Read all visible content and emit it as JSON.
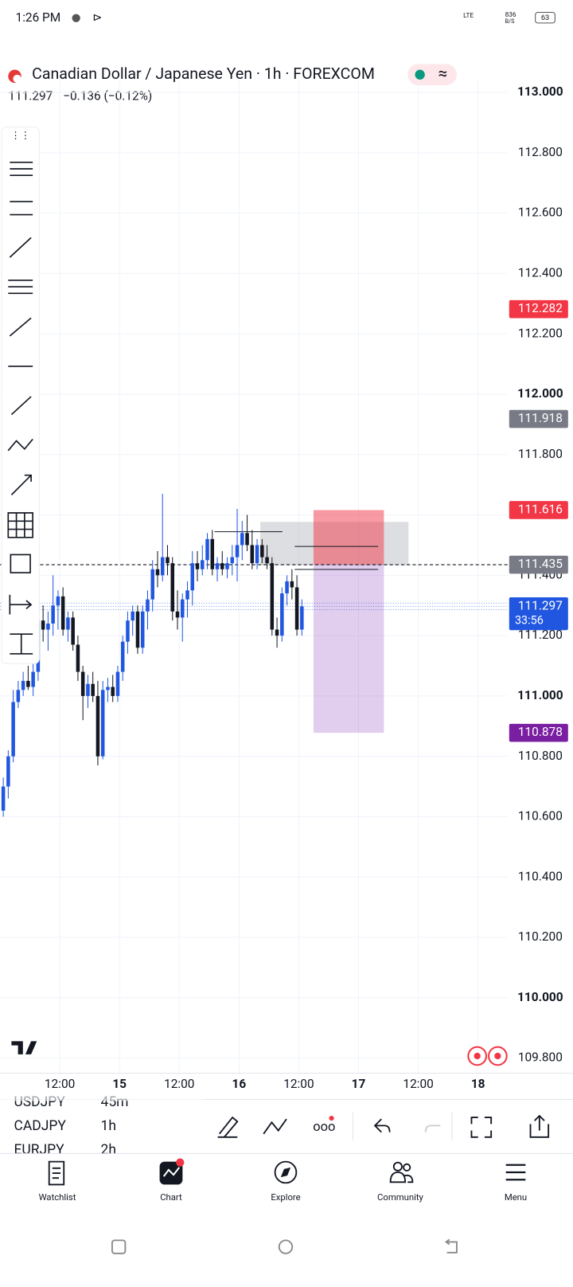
{
  "status_bar": {
    "time": "1:26 PM",
    "network": "LTE",
    "speed": "836",
    "speed_unit": "B/S",
    "battery": "63"
  },
  "header": {
    "symbol": "Canadian Dollar / Japanese Yen · 1h · FOREXCOM",
    "last": "111.297",
    "change": "−0.136 (−0.12%)"
  },
  "chart_data": {
    "type": "candlestick",
    "up_color": "#2157e0",
    "down_color": "#131722",
    "candles": [
      [
        110.62,
        110.73,
        110.6,
        110.7
      ],
      [
        110.7,
        110.82,
        110.66,
        110.8
      ],
      [
        110.8,
        111.02,
        110.78,
        110.98
      ],
      [
        110.98,
        111.05,
        110.96,
        111.02
      ],
      [
        111.02,
        111.08,
        111.0,
        111.05
      ],
      [
        111.05,
        111.1,
        111.02,
        111.03
      ],
      [
        111.03,
        111.12,
        111.0,
        111.08
      ],
      [
        111.08,
        111.3,
        111.05,
        111.25
      ],
      [
        111.25,
        111.3,
        111.18,
        111.22
      ],
      [
        111.22,
        111.28,
        111.15,
        111.24
      ],
      [
        111.24,
        111.4,
        111.2,
        111.3
      ],
      [
        111.3,
        111.35,
        111.22,
        111.33
      ],
      [
        111.33,
        111.36,
        111.2,
        111.22
      ],
      [
        111.22,
        111.28,
        111.18,
        111.26
      ],
      [
        111.26,
        111.28,
        111.15,
        111.17
      ],
      [
        111.17,
        111.2,
        111.05,
        111.08
      ],
      [
        111.08,
        111.1,
        110.92,
        111.0
      ],
      [
        111.0,
        111.07,
        110.96,
        111.04
      ],
      [
        111.04,
        111.08,
        110.98,
        111.0
      ],
      [
        111.0,
        111.05,
        110.77,
        110.8
      ],
      [
        110.8,
        111.05,
        110.79,
        111.02
      ],
      [
        111.02,
        111.06,
        110.98,
        111.03
      ],
      [
        111.03,
        111.07,
        110.98,
        111.0
      ],
      [
        111.0,
        111.1,
        110.98,
        111.08
      ],
      [
        111.08,
        111.2,
        111.05,
        111.18
      ],
      [
        111.18,
        111.28,
        111.14,
        111.25
      ],
      [
        111.25,
        111.3,
        111.2,
        111.28
      ],
      [
        111.28,
        111.3,
        111.14,
        111.16
      ],
      [
        111.16,
        111.3,
        111.14,
        111.28
      ],
      [
        111.28,
        111.35,
        111.22,
        111.32
      ],
      [
        111.32,
        111.45,
        111.28,
        111.42
      ],
      [
        111.42,
        111.48,
        111.36,
        111.4
      ],
      [
        111.4,
        111.67,
        111.38,
        111.46
      ],
      [
        111.46,
        111.5,
        111.4,
        111.44
      ],
      [
        111.44,
        111.46,
        111.25,
        111.28
      ],
      [
        111.28,
        111.35,
        111.22,
        111.26
      ],
      [
        111.26,
        111.34,
        111.18,
        111.32
      ],
      [
        111.32,
        111.38,
        111.26,
        111.35
      ],
      [
        111.35,
        111.48,
        111.3,
        111.44
      ],
      [
        111.44,
        111.48,
        111.38,
        111.42
      ],
      [
        111.42,
        111.5,
        111.4,
        111.45
      ],
      [
        111.45,
        111.54,
        111.42,
        111.52
      ],
      [
        111.52,
        111.55,
        111.4,
        111.42
      ],
      [
        111.42,
        111.46,
        111.38,
        111.44
      ],
      [
        111.44,
        111.48,
        111.4,
        111.42
      ],
      [
        111.42,
        111.46,
        111.39,
        111.44
      ],
      [
        111.44,
        111.5,
        111.4,
        111.46
      ],
      [
        111.46,
        111.62,
        111.38,
        111.5
      ],
      [
        111.5,
        111.58,
        111.45,
        111.54
      ],
      [
        111.54,
        111.6,
        111.48,
        111.5
      ],
      [
        111.5,
        111.55,
        111.42,
        111.44
      ],
      [
        111.44,
        111.52,
        111.42,
        111.5
      ],
      [
        111.5,
        111.52,
        111.44,
        111.46
      ],
      [
        111.46,
        111.5,
        111.42,
        111.44
      ],
      [
        111.44,
        111.46,
        111.2,
        111.22
      ],
      [
        111.22,
        111.26,
        111.16,
        111.2
      ],
      [
        111.2,
        111.36,
        111.18,
        111.34
      ],
      [
        111.34,
        111.4,
        111.3,
        111.38
      ],
      [
        111.38,
        111.42,
        111.32,
        111.36
      ],
      [
        111.36,
        111.4,
        111.2,
        111.22
      ],
      [
        111.22,
        111.32,
        111.2,
        111.297
      ]
    ],
    "ylim": [
      109.75,
      113.04
    ],
    "yticks": [
      {
        "value": 113,
        "label": "113.000"
      },
      {
        "value": 112.8,
        "label": "112.800"
      },
      {
        "value": 112.6,
        "label": "112.600"
      },
      {
        "value": 112.4,
        "label": "112.400"
      },
      {
        "value": 112.2,
        "label": "112.200"
      },
      {
        "value": 112,
        "label": "112.000"
      },
      {
        "value": 111.8,
        "label": "111.800"
      },
      {
        "value": 111.6,
        "label": "111.600"
      },
      {
        "value": 111.4,
        "label": "111.400"
      },
      {
        "value": 111.2,
        "label": "111.200"
      },
      {
        "value": 111,
        "label": "111.000"
      },
      {
        "value": 110.8,
        "label": "110.800"
      },
      {
        "value": 110.6,
        "label": "110.600"
      },
      {
        "value": 110.4,
        "label": "110.400"
      },
      {
        "value": 110.2,
        "label": "110.200"
      },
      {
        "value": 110,
        "label": "110.000"
      },
      {
        "value": 109.8,
        "label": "109.800"
      }
    ],
    "x_labels": [
      "12:00",
      "15",
      "12:00",
      "16",
      "12:00",
      "17",
      "12:00",
      "18"
    ],
    "price_tags": [
      {
        "value": 112.282,
        "color": "#f23645"
      },
      {
        "value": 111.918,
        "color": "#787b86"
      },
      {
        "value": 111.616,
        "color": "#f23645"
      },
      {
        "value": 111.435,
        "color": "#787b86"
      },
      {
        "value": 111.297,
        "color": "#2157e0",
        "countdown": "33:56"
      },
      {
        "value": 110.878,
        "color": "#7b1fa2"
      }
    ],
    "grid": true
  },
  "toolbar": {
    "symbols": [
      [
        "USDJPY",
        "45m"
      ],
      [
        "CADJPY",
        "1h"
      ],
      [
        "EURJPY",
        "2h"
      ]
    ]
  },
  "nav": [
    "Watchlist",
    "Chart",
    "Explore",
    "Community",
    "Menu"
  ]
}
